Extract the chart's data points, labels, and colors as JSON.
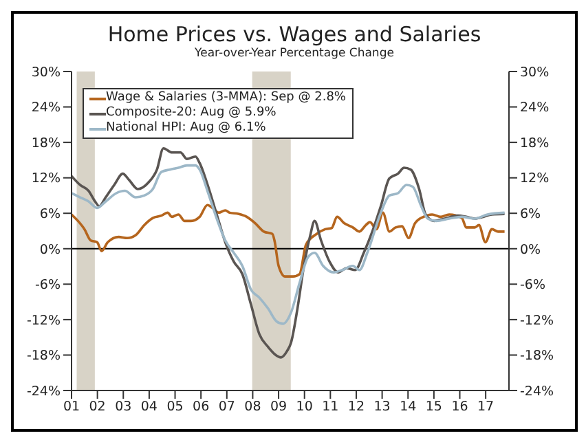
{
  "chart_data": {
    "type": "line",
    "title": "Home Prices vs. Wages and Salaries",
    "subtitle": "Year-over-Year Percentage Change",
    "xlim": [
      2001,
      2017.9
    ],
    "xticks": [
      {
        "value": 2001,
        "label": "01"
      },
      {
        "value": 2002,
        "label": "02"
      },
      {
        "value": 2003,
        "label": "03"
      },
      {
        "value": 2004,
        "label": "04"
      },
      {
        "value": 2005,
        "label": "05"
      },
      {
        "value": 2006,
        "label": "06"
      },
      {
        "value": 2007,
        "label": "07"
      },
      {
        "value": 2008,
        "label": "08"
      },
      {
        "value": 2009,
        "label": "09"
      },
      {
        "value": 2010,
        "label": "10"
      },
      {
        "value": 2011,
        "label": "11"
      },
      {
        "value": 2012,
        "label": "12"
      },
      {
        "value": 2013,
        "label": "13"
      },
      {
        "value": 2014,
        "label": "14"
      },
      {
        "value": 2015,
        "label": "15"
      },
      {
        "value": 2016,
        "label": "16"
      },
      {
        "value": 2017,
        "label": "17"
      }
    ],
    "ylim": [
      -24,
      30
    ],
    "yticks": [
      {
        "value": -24,
        "label": "-24%"
      },
      {
        "value": -18,
        "label": "-18%"
      },
      {
        "value": -12,
        "label": "-12%"
      },
      {
        "value": -6,
        "label": "-6%"
      },
      {
        "value": 0,
        "label": "0%"
      },
      {
        "value": 6,
        "label": "6%"
      },
      {
        "value": 12,
        "label": "12%"
      },
      {
        "value": 18,
        "label": "18%"
      },
      {
        "value": 24,
        "label": "24%"
      },
      {
        "value": 30,
        "label": "30%"
      }
    ],
    "y2lim": [
      -24,
      30
    ],
    "y2ticks": [
      {
        "value": -24,
        "label": "-24%"
      },
      {
        "value": -18,
        "label": "-18%"
      },
      {
        "value": -12,
        "label": "-12%"
      },
      {
        "value": -6,
        "label": "-6%"
      },
      {
        "value": 0,
        "label": "0%"
      },
      {
        "value": 6,
        "label": "6%"
      },
      {
        "value": 12,
        "label": "12%"
      },
      {
        "value": 18,
        "label": "18%"
      },
      {
        "value": 24,
        "label": "24%"
      },
      {
        "value": 30,
        "label": "30%"
      }
    ],
    "legend": "top left",
    "marker": "none",
    "line_style": "solid",
    "ref_lines": [
      {
        "axis": "y",
        "value": 0,
        "color": "#000000"
      }
    ],
    "bands": [
      {
        "axis": "x",
        "from": 2001.2,
        "to": 2001.9,
        "color": "#d8d3c7"
      },
      {
        "axis": "x",
        "from": 2007.98,
        "to": 2009.47,
        "color": "#d8d3c7"
      }
    ],
    "series": [
      {
        "name": "Wage & Salaries (3-MMA): Sep @ 2.8%",
        "color": "#b5651d",
        "x": [
          2001.0,
          2001.25,
          2001.5,
          2001.74,
          2001.99,
          2002.16,
          2002.4,
          2002.82,
          2003.15,
          2003.48,
          2003.81,
          2004.14,
          2004.47,
          2004.71,
          2004.88,
          2005.13,
          2005.37,
          2005.62,
          2005.95,
          2006.25,
          2006.45,
          2006.69,
          2006.94,
          2007.11,
          2007.44,
          2007.77,
          2008.1,
          2008.43,
          2008.76,
          2008.84,
          2009.0,
          2009.25,
          2009.56,
          2009.81,
          2010.06,
          2010.47,
          2010.8,
          2011.05,
          2011.26,
          2011.54,
          2011.87,
          2012.12,
          2012.37,
          2012.53,
          2012.78,
          2013.03,
          2013.28,
          2013.52,
          2013.77,
          2014.02,
          2014.27,
          2014.6,
          2014.93,
          2015.26,
          2015.59,
          2016.08,
          2016.25,
          2016.58,
          2016.74,
          2016.99,
          2017.24,
          2017.48,
          2017.73
        ],
        "values": [
          5.8,
          4.7,
          3.3,
          1.4,
          1.1,
          -0.4,
          1.1,
          2.0,
          1.8,
          2.3,
          4.0,
          5.2,
          5.6,
          6.1,
          5.4,
          5.8,
          4.7,
          4.7,
          5.4,
          7.4,
          6.9,
          6.1,
          6.5,
          6.1,
          5.9,
          5.4,
          4.3,
          2.9,
          2.5,
          1.4,
          -2.9,
          -4.7,
          -4.7,
          -4.3,
          0.7,
          2.5,
          3.3,
          3.5,
          5.4,
          4.3,
          3.6,
          2.9,
          4.0,
          4.5,
          3.3,
          6.1,
          2.9,
          3.6,
          3.8,
          1.8,
          4.3,
          5.4,
          5.8,
          5.4,
          5.8,
          5.2,
          3.6,
          3.6,
          4.0,
          1.1,
          3.3,
          2.9,
          2.9
        ]
      },
      {
        "name": "Composite-20: Aug @ 5.9%",
        "color": "#5a5552",
        "x": [
          2001.0,
          2001.33,
          2001.66,
          2001.91,
          2002.07,
          2002.32,
          2002.65,
          2002.98,
          2003.23,
          2003.56,
          2003.97,
          2004.3,
          2004.55,
          2004.88,
          2005.21,
          2005.46,
          2005.79,
          2005.95,
          2006.28,
          2006.61,
          2006.94,
          2007.27,
          2007.6,
          2007.93,
          2008.26,
          2008.59,
          2008.92,
          2009.09,
          2009.33,
          2009.48,
          2009.73,
          2009.98,
          2010.22,
          2010.39,
          2010.64,
          2010.97,
          2011.3,
          2011.63,
          2011.96,
          2012.29,
          2012.62,
          2012.95,
          2013.28,
          2013.61,
          2013.85,
          2014.1,
          2014.43,
          2014.68,
          2015.01,
          2015.42,
          2015.92,
          2016.25,
          2016.58,
          2016.91,
          2017.24,
          2017.73
        ],
        "values": [
          12.3,
          10.8,
          9.8,
          8.0,
          7.2,
          8.7,
          10.8,
          12.7,
          11.6,
          10.1,
          11.2,
          13.4,
          17.0,
          16.3,
          16.3,
          15.2,
          15.6,
          14.5,
          10.5,
          5.8,
          1.1,
          -2.2,
          -4.3,
          -9.4,
          -14.5,
          -16.6,
          -18.1,
          -18.4,
          -17.3,
          -15.9,
          -10.1,
          -2.9,
          2.2,
          4.7,
          1.4,
          -2.2,
          -4.0,
          -3.3,
          -3.6,
          -0.7,
          2.9,
          7.2,
          11.9,
          12.7,
          13.7,
          13.4,
          10.1,
          5.8,
          4.7,
          5.1,
          5.6,
          5.4,
          5.1,
          5.4,
          5.8,
          5.9
        ]
      },
      {
        "name": "National HPI: Aug @ 6.1%",
        "color": "#9db8c8",
        "x": [
          2001.0,
          2001.33,
          2001.66,
          2001.99,
          2002.32,
          2002.73,
          2003.06,
          2003.48,
          2003.81,
          2004.14,
          2004.47,
          2004.8,
          2005.13,
          2005.46,
          2005.79,
          2005.95,
          2006.28,
          2006.61,
          2006.94,
          2007.27,
          2007.6,
          2007.93,
          2008.26,
          2008.59,
          2008.92,
          2009.17,
          2009.48,
          2009.81,
          2010.14,
          2010.39,
          2010.72,
          2011.13,
          2011.46,
          2011.87,
          2012.12,
          2012.45,
          2012.95,
          2013.28,
          2013.61,
          2013.94,
          2014.18,
          2014.51,
          2014.76,
          2015.09,
          2015.59,
          2016.08,
          2016.58,
          2017.07,
          2017.73
        ],
        "values": [
          9.4,
          8.7,
          8.0,
          6.9,
          8.0,
          9.4,
          9.8,
          8.7,
          9.0,
          10.1,
          13.0,
          13.4,
          13.7,
          14.1,
          14.1,
          13.4,
          9.4,
          5.1,
          1.4,
          -0.7,
          -2.9,
          -6.9,
          -8.3,
          -10.1,
          -12.3,
          -12.7,
          -10.8,
          -5.8,
          -1.4,
          -0.7,
          -2.9,
          -4.0,
          -3.6,
          -2.9,
          -3.6,
          -0.4,
          6.1,
          9.0,
          9.4,
          10.8,
          10.5,
          7.2,
          5.1,
          4.7,
          5.1,
          5.4,
          5.1,
          5.8,
          6.1
        ]
      }
    ]
  }
}
